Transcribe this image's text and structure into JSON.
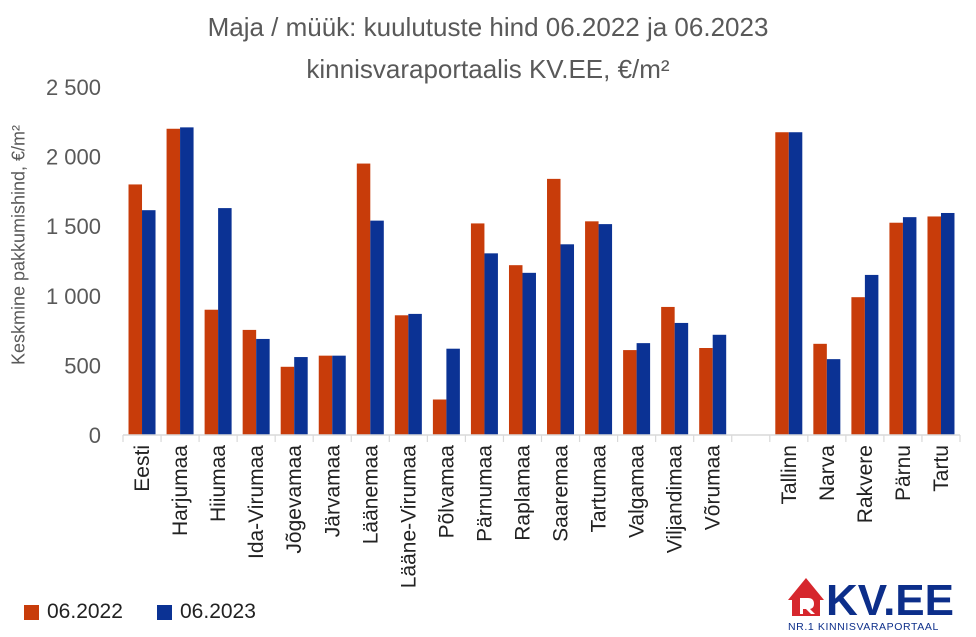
{
  "colors": {
    "series_2022": "#c83c0a",
    "series_2023": "#0b3294",
    "axis": "#d9d9d9",
    "text": "#595959",
    "logo_red": "#d6272d",
    "logo_blue": "#0c2e8a"
  },
  "logo": {
    "name": "KV.EE",
    "tagline": "NR.1 KINNISVARAPORTAAL"
  },
  "chart_data": {
    "type": "bar",
    "title": "Maja / müük: kuulutuste hind 06.2022 ja 06.2023",
    "subtitle": "kinnisvaraportaalis KV.EE, €/m²",
    "xlabel": "",
    "ylabel": "Keskmine pakkumishind, €/m²",
    "ylim": [
      0,
      2500
    ],
    "yticks": [
      0,
      500,
      1000,
      1500,
      2000,
      2500
    ],
    "ytick_labels": [
      "0",
      "500",
      "1 000",
      "1 500",
      "2 000",
      "2 500"
    ],
    "grid": false,
    "legend_position": "bottom-left",
    "categories": [
      "Eesti",
      "Harjumaa",
      "Hiiumaa",
      "Ida-Virumaa",
      "Jõgevamaa",
      "Järvamaa",
      "Läänemaa",
      "Lääne-Virumaa",
      "Põlvamaa",
      "Pärnumaa",
      "Raplamaa",
      "Saaremaa",
      "Tartumaa",
      "Valgamaa",
      "Viljandimaa",
      "Võrumaa",
      "",
      "Tallinn",
      "Narva",
      "Rakvere",
      "Pärnu",
      "Tartu"
    ],
    "series": [
      {
        "name": "06.2022",
        "values": [
          1800,
          2200,
          900,
          755,
          490,
          570,
          1950,
          860,
          255,
          1520,
          1220,
          1840,
          1535,
          610,
          920,
          625,
          null,
          2175,
          655,
          990,
          1525,
          1570
        ]
      },
      {
        "name": "06.2023",
        "values": [
          1615,
          2210,
          1630,
          690,
          560,
          570,
          1540,
          870,
          620,
          1305,
          1165,
          1370,
          1515,
          660,
          805,
          720,
          null,
          2175,
          545,
          1150,
          1565,
          1595
        ]
      }
    ]
  }
}
